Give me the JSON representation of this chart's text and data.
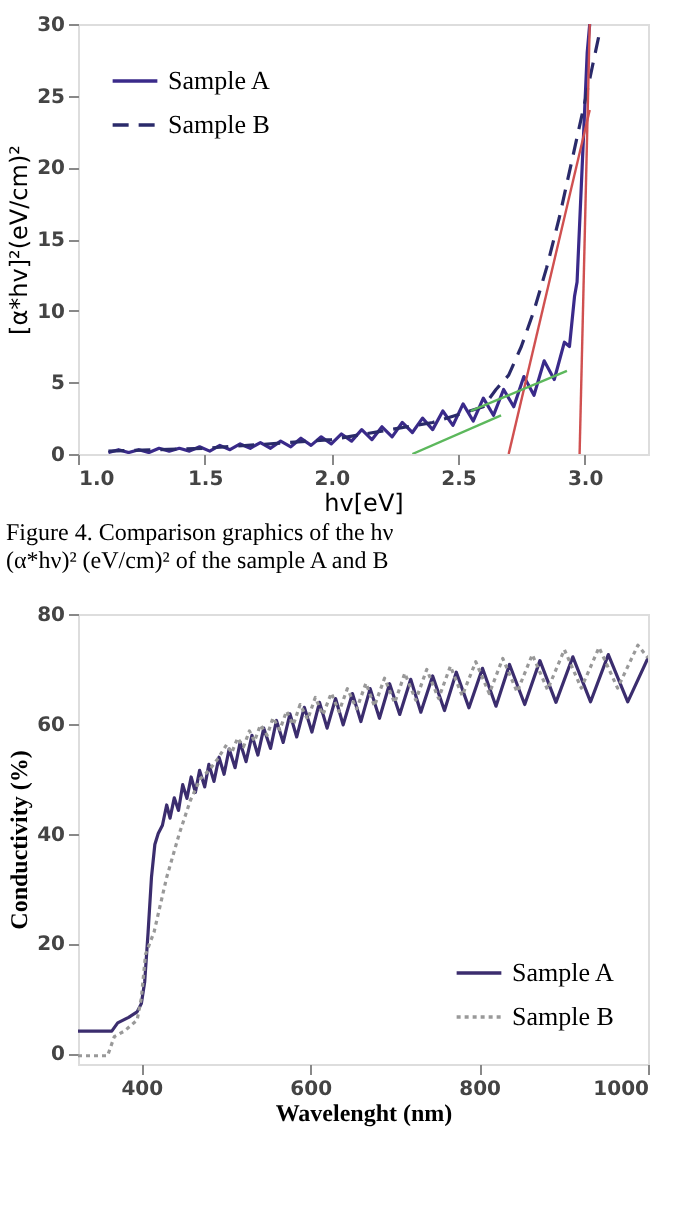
{
  "chart_data": [
    {
      "type": "line",
      "xlabel": "hv[eV]",
      "ylabel": "[α*hv]²(eV/cm)²",
      "xlim": [
        1.0,
        3.25
      ],
      "ylim": [
        0,
        30
      ],
      "xticks": [
        {
          "value": 1,
          "label": "1.0"
        },
        1.5,
        {
          "value": 2,
          "label": "2.0"
        },
        2.5,
        {
          "value": 3,
          "label": "3.0"
        }
      ],
      "yticks": [
        0,
        5,
        10,
        15,
        20,
        25,
        30
      ],
      "grid": false,
      "legend": "top left",
      "marker": "none",
      "annotations": [
        "Figure 4. Comparison graphics of the hν (α*hν)² (eV/cm)² of the sample A and B"
      ],
      "series": [
        {
          "name": "Sample A",
          "color": "#3a2a8a",
          "line_style": "solid",
          "x": [
            1.12,
            1.16,
            1.2,
            1.24,
            1.28,
            1.32,
            1.36,
            1.4,
            1.44,
            1.48,
            1.52,
            1.56,
            1.6,
            1.64,
            1.68,
            1.72,
            1.76,
            1.8,
            1.84,
            1.88,
            1.92,
            1.96,
            2.0,
            2.04,
            2.08,
            2.12,
            2.16,
            2.2,
            2.24,
            2.28,
            2.32,
            2.36,
            2.4,
            2.44,
            2.48,
            2.52,
            2.56,
            2.6,
            2.64,
            2.68,
            2.72,
            2.76,
            2.8,
            2.84,
            2.88,
            2.92,
            2.94,
            2.96,
            2.97,
            2.99,
            3.01,
            3.02
          ],
          "values": [
            0.1,
            0.3,
            0.1,
            0.3,
            0.1,
            0.4,
            0.2,
            0.4,
            0.2,
            0.5,
            0.2,
            0.6,
            0.3,
            0.7,
            0.4,
            0.8,
            0.4,
            0.9,
            0.5,
            1.1,
            0.6,
            1.2,
            0.7,
            1.4,
            0.9,
            1.7,
            1.0,
            1.9,
            1.2,
            2.2,
            1.5,
            2.5,
            1.7,
            3.0,
            2.0,
            3.5,
            2.3,
            3.9,
            2.7,
            4.5,
            3.3,
            5.4,
            4.1,
            6.5,
            5.2,
            7.8,
            7.5,
            11,
            12,
            20,
            28,
            30
          ]
        },
        {
          "name": "Sample B",
          "color": "#2a2a6a",
          "line_style": "dashed",
          "x": [
            1.12,
            1.5,
            2.0,
            2.4,
            2.6,
            2.65,
            2.7,
            2.75,
            2.8,
            2.85,
            2.9,
            2.95,
            3.0,
            3.03,
            3.06
          ],
          "values": [
            0.2,
            0.4,
            1.0,
            2.2,
            3.3,
            4.5,
            5.5,
            7.5,
            10,
            13,
            16.5,
            20.5,
            24.5,
            27,
            29.5
          ]
        },
        {
          "color": "#d05050",
          "line_style": "solid",
          "x": [
            2.7,
            3.02
          ],
          "values": [
            0,
            24
          ]
        },
        {
          "color": "#d05050",
          "line_style": "solid",
          "x": [
            2.98,
            3.02
          ],
          "values": [
            0,
            30
          ]
        },
        {
          "color": "#5cb85c",
          "line_style": "solid",
          "x": [
            2.32,
            2.67
          ],
          "values": [
            0,
            2.7
          ]
        },
        {
          "color": "#5cb85c",
          "line_style": "solid",
          "x": [
            2.55,
            2.93
          ],
          "values": [
            3.0,
            5.8
          ]
        }
      ]
    },
    {
      "type": "line",
      "xlabel": "Wavelenght (nm)",
      "ylabel": "Conductivity (%)",
      "xlim": [
        325,
        1000
      ],
      "ylim": [
        -2,
        80
      ],
      "xticks": [
        400,
        600,
        800,
        1000
      ],
      "yticks": [
        0,
        20,
        40,
        60,
        80
      ],
      "grid": false,
      "legend": "bottom right",
      "marker": "none",
      "series": [
        {
          "name": "Sample A",
          "color": "#3b2d6e",
          "line_style": "solid",
          "x": [
            325,
            365,
            372,
            385,
            395,
            400,
            404,
            408,
            412,
            416,
            420,
            425,
            430,
            434,
            439,
            444,
            449,
            454,
            459,
            464,
            469,
            475,
            480,
            486,
            492,
            498,
            504,
            511,
            517,
            524,
            531,
            538,
            545,
            553,
            560,
            568,
            576,
            584,
            593,
            602,
            611,
            620,
            630,
            639,
            650,
            660,
            671,
            682,
            694,
            706,
            719,
            731,
            745,
            759,
            773,
            788,
            804,
            820,
            836,
            854,
            872,
            891,
            911,
            932,
            953,
            976,
            1000
          ],
          "values": [
            4,
            4,
            5.5,
            6.5,
            7.5,
            9,
            13,
            22,
            32,
            38,
            40,
            41.5,
            45.2,
            42.8,
            46.5,
            44.2,
            48.9,
            46.4,
            50.3,
            47.5,
            51.5,
            48.5,
            52.6,
            49.5,
            53.9,
            50.8,
            55.4,
            52,
            56.6,
            53.1,
            57.9,
            54.3,
            59.2,
            55.5,
            60.6,
            56.6,
            61.8,
            57.6,
            63,
            58.5,
            63.9,
            59.2,
            64.6,
            59.8,
            65.5,
            60.4,
            66.4,
            61,
            67.3,
            61.7,
            68.1,
            62.1,
            68.7,
            62.4,
            69.4,
            62.9,
            70.1,
            63.2,
            70.8,
            63.5,
            71.5,
            63.9,
            72.2,
            64,
            72.6,
            64,
            72
          ]
        },
        {
          "name": "Sample B",
          "color": "#999999",
          "line_style": "dotted",
          "x": [
            325,
            360,
            368,
            380,
            395,
            400,
            405,
            415,
            430,
            445,
            458,
            470,
            480,
            490,
            501,
            507,
            514,
            521,
            528,
            534,
            541,
            549,
            556,
            564,
            572,
            580,
            588,
            597,
            606,
            615,
            625,
            634,
            644,
            655,
            666,
            676,
            688,
            700,
            712,
            725,
            738,
            752,
            766,
            780,
            796,
            812,
            828,
            845,
            863,
            881,
            901,
            921,
            942,
            964,
            988,
            1000
          ],
          "values": [
            -0.5,
            -0.5,
            3,
            4,
            6,
            10,
            18,
            22,
            32,
            40,
            46,
            50,
            51.5,
            53.5,
            56.2,
            54.7,
            57.4,
            55.8,
            58.7,
            56.8,
            59.8,
            57.9,
            61.1,
            58.9,
            62.3,
            59.8,
            63.5,
            60.8,
            64.8,
            61.6,
            65.6,
            62.2,
            66.4,
            62.7,
            67.4,
            63.2,
            68.3,
            63.8,
            69.2,
            64.3,
            69.9,
            64.6,
            70.5,
            65.1,
            71.3,
            65.5,
            71.9,
            65.8,
            72.6,
            66.2,
            73.5,
            66.5,
            73.9,
            66.5,
            74.3,
            72
          ]
        }
      ]
    }
  ]
}
